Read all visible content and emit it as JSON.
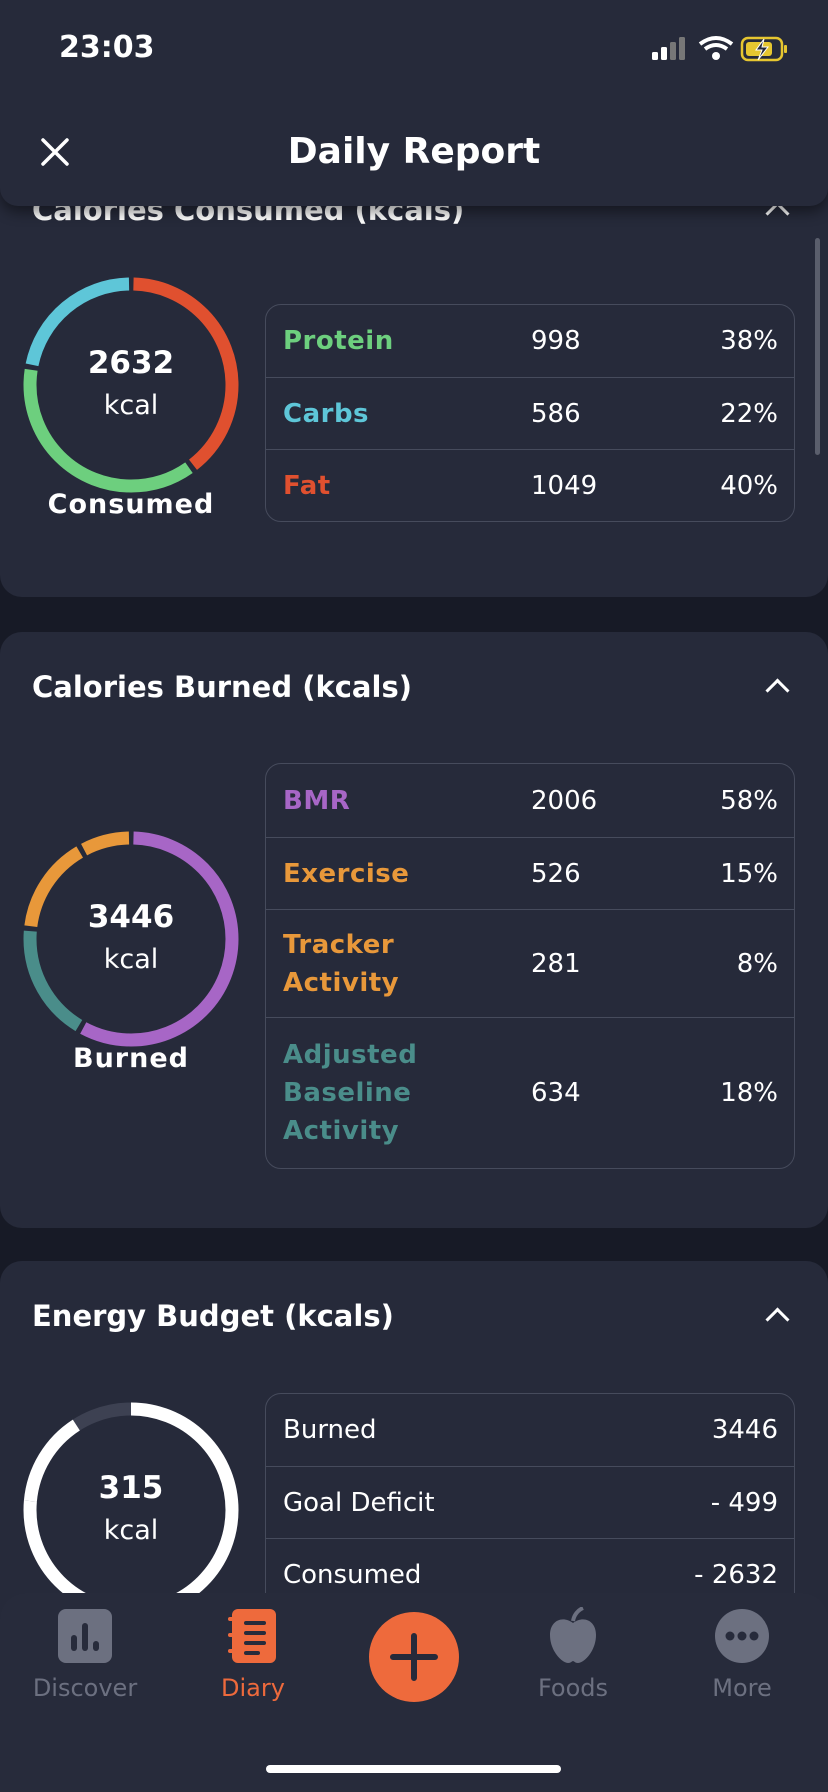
{
  "status_bar": {
    "time": "23:03"
  },
  "header": {
    "title": "Daily Report"
  },
  "sections": [
    {
      "title": "Calories Consumed (kcals)",
      "total": 2632,
      "unit": "kcal",
      "caption": "Consumed",
      "rows": [
        {
          "label": "Protein",
          "value": 998,
          "percent": "38%",
          "color": "#6dcf7e"
        },
        {
          "label": "Carbs",
          "value": 586,
          "percent": "22%",
          "color": "#5ec6d8"
        },
        {
          "label": "Fat",
          "value": 1049,
          "percent": "40%",
          "color": "#e0502f"
        }
      ]
    },
    {
      "title": "Calories Burned (kcals)",
      "total": 3446,
      "unit": "kcal",
      "caption": "Burned",
      "rows": [
        {
          "label": "BMR",
          "value": 2006,
          "percent": "58%",
          "color": "#a766c6"
        },
        {
          "label": "Exercise",
          "value": 526,
          "percent": "15%",
          "color": "#e8983a"
        },
        {
          "label": "Tracker Activity",
          "value": 281,
          "percent": "8%",
          "color": "#e8983a"
        },
        {
          "label": "Adjusted Baseline Activity",
          "value": 634,
          "percent": "18%",
          "color": "#4a8d8a"
        }
      ]
    },
    {
      "title": "Energy Budget (kcals)",
      "total": 315,
      "unit": "kcal",
      "rows": [
        {
          "label": "Burned",
          "value": 3446
        },
        {
          "label": "Goal Deficit",
          "value": -499,
          "value_label": "- 499"
        },
        {
          "label": "Consumed",
          "value": -2632,
          "value_label": "- 2632"
        }
      ]
    }
  ],
  "tab_bar": {
    "items": [
      {
        "label": "Discover"
      },
      {
        "label": "Diary"
      },
      {
        "label": "Foods"
      },
      {
        "label": "More"
      }
    ]
  }
}
